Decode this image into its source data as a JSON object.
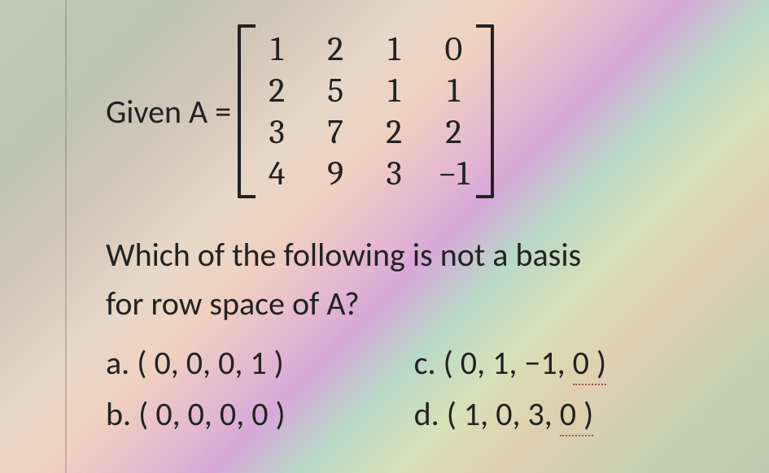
{
  "given": {
    "label": "Given A =",
    "matrix": {
      "rows": 4,
      "cols": 4,
      "cells": [
        [
          "1",
          "2",
          "1",
          "0"
        ],
        [
          "2",
          "5",
          "1",
          "1"
        ],
        [
          "3",
          "7",
          "2",
          "2"
        ],
        [
          "4",
          "9",
          "3",
          "−1"
        ]
      ]
    }
  },
  "question": {
    "line1": "Which of the following is not a basis",
    "line2": "for row space of A?"
  },
  "options": {
    "a_prefix": "a. ( 0, 0, 0, 1 )",
    "b_prefix": "b. ( 0, 0, 0, 0 )",
    "c_prefix": "c. ( 0, 1, −1, ",
    "c_suffix": "0 )",
    "d_prefix": "d. ( 1, 0, 3, ",
    "d_suffix": "0 )"
  },
  "style": {
    "text_color": "#222222",
    "font_body": "Calibri",
    "font_math": "Cambria",
    "fontsize_label": 40,
    "fontsize_matrix": 42,
    "fontsize_question": 40,
    "fontsize_options": 40,
    "dotted_underline_color": "#a05050",
    "bracket_color": "#222222",
    "bracket_thickness": 4
  }
}
